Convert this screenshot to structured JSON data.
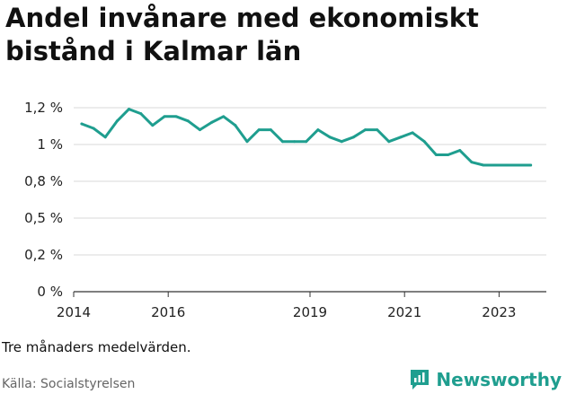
{
  "title": "Andel invånare med ekonomiskt bistånd i Kalmar län",
  "note": "Tre månaders medelvärden.",
  "source": "Källa: Socialstyrelsen",
  "brand": "Newsworthy",
  "colors": {
    "line": "#1f9e8f",
    "grid": "#d9d9d9",
    "brand": "#1f9e8f"
  },
  "chart_data": {
    "type": "line",
    "title": "Andel invånare med ekonomiskt bistånd i Kalmar län",
    "xlabel": "",
    "ylabel": "",
    "grid": true,
    "x_range": [
      2014.0,
      2024.0
    ],
    "ylim": [
      0,
      1.25
    ],
    "y_ticks": [
      {
        "value": 0,
        "label": "0 %"
      },
      {
        "value": 0.25,
        "label": "0,2 %"
      },
      {
        "value": 0.5,
        "label": "0,5 %"
      },
      {
        "value": 0.75,
        "label": "0,8 %"
      },
      {
        "value": 1.0,
        "label": "1 %"
      },
      {
        "value": 1.25,
        "label": "1,2 %"
      }
    ],
    "x_ticks": [
      {
        "value": 2014,
        "label": "2014"
      },
      {
        "value": 2016,
        "label": "2016"
      },
      {
        "value": 2019,
        "label": "2019"
      },
      {
        "value": 2021,
        "label": "2021"
      },
      {
        "value": 2023,
        "label": "2023"
      }
    ],
    "series": [
      {
        "x": [
          2014.17,
          2014.42,
          2014.67,
          2014.92,
          2015.17,
          2015.42,
          2015.67,
          2015.92,
          2016.17,
          2016.42,
          2016.67,
          2016.92,
          2017.17,
          2017.42,
          2017.67,
          2017.92,
          2018.17,
          2018.42,
          2018.67,
          2018.92,
          2019.17,
          2019.42,
          2019.67,
          2019.92,
          2020.17,
          2020.42,
          2020.67,
          2020.92,
          2021.17,
          2021.42,
          2021.67,
          2021.92,
          2022.17,
          2022.42,
          2022.67,
          2022.92,
          2023.17,
          2023.42,
          2023.67
        ],
        "values": [
          1.14,
          1.11,
          1.05,
          1.16,
          1.24,
          1.21,
          1.13,
          1.19,
          1.19,
          1.16,
          1.1,
          1.15,
          1.19,
          1.13,
          1.02,
          1.1,
          1.1,
          1.02,
          1.02,
          1.02,
          1.1,
          1.05,
          1.02,
          1.05,
          1.1,
          1.1,
          1.02,
          1.05,
          1.08,
          1.02,
          0.93,
          0.93,
          0.96,
          0.88,
          0.86,
          0.86,
          0.86,
          0.86,
          0.86
        ]
      }
    ]
  }
}
